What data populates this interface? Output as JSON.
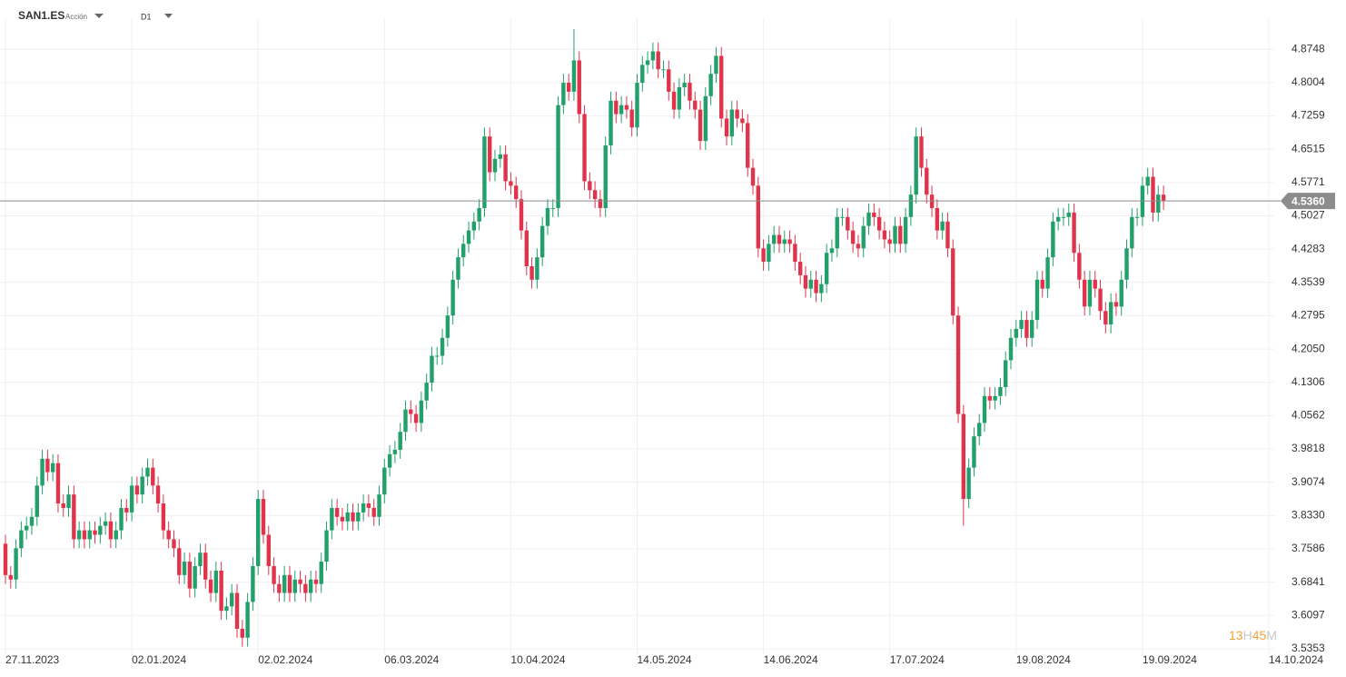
{
  "header": {
    "symbol": "SAN1.ES",
    "asset_type": "Acción",
    "timeframe": "D1"
  },
  "chart_data": {
    "type": "candlestick",
    "categories": [
      "27.11.2023",
      null,
      null,
      null,
      null,
      null,
      null,
      null,
      null,
      null,
      null,
      null,
      null,
      null,
      null,
      null,
      null,
      null,
      null,
      null,
      null,
      null,
      null,
      null,
      "02.01.2024",
      null,
      null,
      null,
      null,
      null,
      null,
      null,
      null,
      null,
      null,
      null,
      null,
      null,
      null,
      null,
      null,
      null,
      null,
      null,
      null,
      null,
      null,
      null,
      "02.02.2024",
      null,
      null,
      null,
      null,
      null,
      null,
      null,
      null,
      null,
      null,
      null,
      null,
      null,
      null,
      null,
      null,
      null,
      null,
      null,
      null,
      null,
      null,
      null,
      "06.03.2024",
      null,
      null,
      null,
      null,
      null,
      null,
      null,
      null,
      null,
      null,
      null,
      null,
      null,
      null,
      null,
      null,
      null,
      null,
      null,
      null,
      null,
      null,
      null,
      "10.04.2024",
      null,
      null,
      null,
      null,
      null,
      null,
      null,
      null,
      null,
      null,
      null,
      null,
      null,
      null,
      null,
      null,
      null,
      null,
      null,
      null,
      null,
      null,
      null,
      "14.05.2024",
      null,
      null,
      null,
      null,
      null,
      null,
      null,
      null,
      null,
      null,
      null,
      null,
      null,
      null,
      null,
      null,
      null,
      null,
      null,
      null,
      null,
      null,
      null,
      "14.06.2024",
      null,
      null,
      null,
      null,
      null,
      null,
      null,
      null,
      null,
      null,
      null,
      null,
      null,
      null,
      null,
      null,
      null,
      null,
      null,
      null,
      null,
      null,
      null,
      "17.07.2024",
      null,
      null,
      null,
      null,
      null,
      null,
      null,
      null,
      null,
      null,
      null,
      null,
      null,
      null,
      null,
      null,
      null,
      null,
      null,
      null,
      null,
      null,
      null,
      "19.08.2024",
      null,
      null,
      null,
      null,
      null,
      null,
      null,
      null,
      null,
      null,
      null,
      null,
      null,
      null,
      null,
      null,
      null,
      null,
      null,
      null,
      null,
      null,
      null,
      "19.09.2024",
      null,
      null,
      null,
      null,
      null,
      null,
      null,
      null,
      null,
      null,
      null,
      null,
      null,
      null,
      null,
      null,
      null,
      null,
      null,
      null,
      null,
      null,
      null,
      "14.10.2024"
    ],
    "open": [
      3.77,
      3.7,
      3.69,
      3.76,
      3.8,
      3.81,
      3.83,
      3.9,
      3.96,
      3.93,
      3.95,
      3.86,
      3.85,
      3.88,
      3.78,
      3.8,
      3.78,
      3.8,
      3.79,
      3.81,
      3.82,
      3.78,
      3.8,
      3.85,
      3.84,
      3.9,
      3.88,
      3.92,
      3.94,
      3.9,
      3.86,
      3.8,
      3.78,
      3.76,
      3.7,
      3.73,
      3.67,
      3.72,
      3.75,
      3.69,
      3.66,
      3.71,
      3.62,
      3.63,
      3.66,
      3.58,
      3.56,
      3.64,
      3.72,
      3.87,
      3.79,
      3.72,
      3.68,
      3.66,
      3.7,
      3.66,
      3.69,
      3.68,
      3.66,
      3.69,
      3.68,
      3.73,
      3.8,
      3.85,
      3.83,
      3.82,
      3.84,
      3.82,
      3.84,
      3.86,
      3.85,
      3.83,
      3.88,
      3.94,
      3.97,
      3.98,
      4.02,
      4.07,
      4.06,
      4.04,
      4.09,
      4.13,
      4.19,
      4.19,
      4.23,
      4.28,
      4.36,
      4.41,
      4.44,
      4.47,
      4.49,
      4.52,
      4.68,
      4.6,
      4.63,
      4.64,
      4.58,
      4.57,
      4.54,
      4.47,
      4.39,
      4.36,
      4.41,
      4.48,
      4.52,
      4.52,
      4.75,
      4.8,
      4.78,
      4.85,
      4.73,
      4.58,
      4.56,
      4.54,
      4.52,
      4.66,
      4.76,
      4.73,
      4.75,
      4.74,
      4.7,
      4.8,
      4.84,
      4.85,
      4.87,
      4.83,
      4.83,
      4.78,
      4.74,
      4.79,
      4.8,
      4.76,
      4.74,
      4.67,
      4.77,
      4.82,
      4.86,
      4.72,
      4.68,
      4.74,
      4.72,
      4.71,
      4.61,
      4.57,
      4.43,
      4.4,
      4.44,
      4.46,
      4.44,
      4.45,
      4.44,
      4.4,
      4.37,
      4.34,
      4.36,
      4.33,
      4.35,
      4.42,
      4.43,
      4.5,
      4.5,
      4.47,
      4.44,
      4.43,
      4.48,
      4.51,
      4.5,
      4.47,
      4.45,
      4.44,
      4.48,
      4.44,
      4.5,
      4.55,
      4.68,
      4.61,
      4.55,
      4.52,
      4.47,
      4.49,
      4.43,
      4.28,
      4.06,
      3.87,
      3.94,
      4.01,
      4.04,
      4.1,
      4.09,
      4.1,
      4.12,
      4.18,
      4.23,
      4.25,
      4.27,
      4.23,
      4.27,
      4.36,
      4.34,
      4.41,
      4.49,
      4.5,
      4.5,
      4.51,
      4.42,
      4.36,
      4.3,
      4.36,
      4.34,
      4.29,
      4.26,
      4.31,
      4.3,
      4.36,
      4.43,
      4.5,
      4.5,
      4.57,
      4.59,
      4.51,
      4.55,
      null,
      null,
      null,
      null,
      null,
      null,
      null,
      null,
      null,
      null,
      null,
      null,
      null,
      null,
      null,
      null,
      null,
      null,
      null,
      null
    ],
    "high": [
      3.79,
      3.72,
      3.78,
      3.82,
      3.83,
      3.85,
      3.92,
      3.98,
      3.98,
      3.97,
      3.97,
      3.88,
      3.9,
      3.9,
      3.82,
      3.82,
      3.82,
      3.82,
      3.83,
      3.84,
      3.84,
      3.82,
      3.87,
      3.87,
      3.92,
      3.92,
      3.94,
      3.96,
      3.96,
      3.92,
      3.88,
      3.82,
      3.8,
      3.78,
      3.75,
      3.75,
      3.74,
      3.77,
      3.77,
      3.71,
      3.73,
      3.73,
      3.65,
      3.68,
      3.68,
      3.6,
      3.66,
      3.74,
      3.89,
      3.89,
      3.81,
      3.74,
      3.7,
      3.72,
      3.72,
      3.71,
      3.71,
      3.7,
      3.71,
      3.71,
      3.75,
      3.82,
      3.87,
      3.87,
      3.85,
      3.86,
      3.86,
      3.86,
      3.88,
      3.88,
      3.87,
      3.9,
      3.96,
      3.99,
      4.0,
      4.04,
      4.09,
      4.09,
      4.08,
      4.11,
      4.15,
      4.21,
      4.21,
      4.25,
      4.3,
      4.38,
      4.43,
      4.46,
      4.49,
      4.51,
      4.54,
      4.7,
      4.7,
      4.65,
      4.66,
      4.66,
      4.6,
      4.59,
      4.56,
      4.49,
      4.41,
      4.43,
      4.5,
      4.54,
      4.54,
      4.77,
      4.82,
      4.82,
      4.92,
      4.87,
      4.75,
      4.6,
      4.58,
      4.56,
      4.68,
      4.78,
      4.78,
      4.77,
      4.77,
      4.76,
      4.82,
      4.86,
      4.87,
      4.89,
      4.89,
      4.85,
      4.85,
      4.8,
      4.81,
      4.82,
      4.82,
      4.78,
      4.76,
      4.79,
      4.84,
      4.88,
      4.88,
      4.74,
      4.76,
      4.76,
      4.74,
      4.73,
      4.63,
      4.59,
      4.45,
      4.46,
      4.48,
      4.48,
      4.47,
      4.47,
      4.46,
      4.42,
      4.39,
      4.38,
      4.38,
      4.37,
      4.44,
      4.45,
      4.52,
      4.52,
      4.52,
      4.49,
      4.46,
      4.5,
      4.53,
      4.53,
      4.52,
      4.49,
      4.47,
      4.5,
      4.5,
      4.52,
      4.57,
      4.7,
      4.7,
      4.63,
      4.57,
      4.54,
      4.51,
      4.51,
      4.45,
      4.3,
      4.08,
      3.96,
      4.03,
      4.06,
      4.12,
      4.12,
      4.12,
      4.14,
      4.2,
      4.25,
      4.27,
      4.29,
      4.29,
      4.29,
      4.38,
      4.38,
      4.43,
      4.51,
      4.52,
      4.52,
      4.53,
      4.53,
      4.44,
      4.38,
      4.38,
      4.38,
      4.36,
      4.31,
      4.33,
      4.33,
      4.38,
      4.45,
      4.52,
      4.52,
      4.59,
      4.61,
      4.61,
      4.57,
      4.57,
      null,
      null,
      null,
      null,
      null,
      null,
      null,
      null,
      null,
      null,
      null,
      null,
      null,
      null,
      null,
      null,
      null,
      null,
      null,
      null
    ],
    "low": [
      3.68,
      3.67,
      3.67,
      3.74,
      3.78,
      3.79,
      3.81,
      3.88,
      3.91,
      3.91,
      3.84,
      3.83,
      3.83,
      3.76,
      3.76,
      3.76,
      3.76,
      3.77,
      3.77,
      3.79,
      3.76,
      3.76,
      3.78,
      3.82,
      3.82,
      3.86,
      3.86,
      3.9,
      3.88,
      3.84,
      3.78,
      3.76,
      3.74,
      3.68,
      3.68,
      3.65,
      3.65,
      3.7,
      3.67,
      3.64,
      3.64,
      3.6,
      3.6,
      3.61,
      3.56,
      3.54,
      3.54,
      3.62,
      3.7,
      3.77,
      3.7,
      3.66,
      3.64,
      3.64,
      3.64,
      3.64,
      3.66,
      3.64,
      3.64,
      3.66,
      3.66,
      3.71,
      3.78,
      3.81,
      3.8,
      3.8,
      3.8,
      3.8,
      3.82,
      3.83,
      3.81,
      3.81,
      3.86,
      3.92,
      3.95,
      3.96,
      4.0,
      4.04,
      4.02,
      4.02,
      4.07,
      4.11,
      4.17,
      4.17,
      4.21,
      4.26,
      4.34,
      4.39,
      4.42,
      4.45,
      4.47,
      4.5,
      4.58,
      4.58,
      4.61,
      4.56,
      4.55,
      4.52,
      4.45,
      4.37,
      4.34,
      4.34,
      4.39,
      4.46,
      4.5,
      4.5,
      4.73,
      4.76,
      4.76,
      4.71,
      4.56,
      4.54,
      4.52,
      4.5,
      4.5,
      4.64,
      4.71,
      4.71,
      4.72,
      4.68,
      4.68,
      4.78,
      4.82,
      4.83,
      4.81,
      4.81,
      4.76,
      4.72,
      4.72,
      4.77,
      4.74,
      4.72,
      4.65,
      4.65,
      4.75,
      4.8,
      4.7,
      4.66,
      4.66,
      4.7,
      4.69,
      4.59,
      4.55,
      4.41,
      4.38,
      4.38,
      4.42,
      4.42,
      4.42,
      4.42,
      4.38,
      4.35,
      4.32,
      4.32,
      4.31,
      4.31,
      4.33,
      4.4,
      4.41,
      4.48,
      4.45,
      4.42,
      4.41,
      4.41,
      4.46,
      4.48,
      4.45,
      4.43,
      4.42,
      4.42,
      4.42,
      4.42,
      4.48,
      4.53,
      4.59,
      4.53,
      4.5,
      4.45,
      4.45,
      4.41,
      4.26,
      4.04,
      3.81,
      3.85,
      3.92,
      3.99,
      4.02,
      4.07,
      4.07,
      4.08,
      4.1,
      4.16,
      4.21,
      4.23,
      4.21,
      4.21,
      4.25,
      4.32,
      4.32,
      4.39,
      4.47,
      4.48,
      4.48,
      4.4,
      4.34,
      4.28,
      4.28,
      4.32,
      4.27,
      4.24,
      4.24,
      4.28,
      4.28,
      4.34,
      4.41,
      4.48,
      4.48,
      4.55,
      4.49,
      4.49,
      4.516,
      null,
      null,
      null,
      null,
      null,
      null,
      null,
      null,
      null,
      null,
      null,
      null,
      null,
      null,
      null,
      null,
      null,
      null,
      null,
      null
    ],
    "close": [
      3.7,
      3.69,
      3.76,
      3.8,
      3.81,
      3.83,
      3.9,
      3.96,
      3.93,
      3.95,
      3.86,
      3.85,
      3.88,
      3.78,
      3.8,
      3.78,
      3.8,
      3.79,
      3.81,
      3.82,
      3.78,
      3.8,
      3.85,
      3.84,
      3.9,
      3.88,
      3.92,
      3.94,
      3.9,
      3.86,
      3.8,
      3.78,
      3.76,
      3.7,
      3.73,
      3.67,
      3.72,
      3.75,
      3.69,
      3.66,
      3.71,
      3.62,
      3.63,
      3.66,
      3.58,
      3.56,
      3.64,
      3.72,
      3.87,
      3.79,
      3.72,
      3.68,
      3.66,
      3.7,
      3.66,
      3.69,
      3.68,
      3.66,
      3.69,
      3.68,
      3.73,
      3.8,
      3.85,
      3.83,
      3.82,
      3.84,
      3.82,
      3.84,
      3.86,
      3.85,
      3.83,
      3.88,
      3.94,
      3.97,
      3.98,
      4.02,
      4.07,
      4.06,
      4.04,
      4.09,
      4.13,
      4.19,
      4.19,
      4.23,
      4.28,
      4.36,
      4.41,
      4.44,
      4.47,
      4.49,
      4.52,
      4.68,
      4.6,
      4.63,
      4.64,
      4.58,
      4.57,
      4.54,
      4.47,
      4.39,
      4.36,
      4.41,
      4.48,
      4.52,
      4.52,
      4.75,
      4.8,
      4.78,
      4.85,
      4.73,
      4.58,
      4.56,
      4.54,
      4.52,
      4.66,
      4.76,
      4.73,
      4.75,
      4.74,
      4.7,
      4.8,
      4.84,
      4.85,
      4.87,
      4.83,
      4.83,
      4.78,
      4.74,
      4.79,
      4.8,
      4.76,
      4.74,
      4.67,
      4.77,
      4.82,
      4.86,
      4.72,
      4.68,
      4.74,
      4.72,
      4.71,
      4.61,
      4.57,
      4.43,
      4.4,
      4.44,
      4.46,
      4.44,
      4.45,
      4.44,
      4.4,
      4.37,
      4.34,
      4.36,
      4.33,
      4.35,
      4.42,
      4.43,
      4.5,
      4.5,
      4.47,
      4.44,
      4.43,
      4.48,
      4.51,
      4.5,
      4.47,
      4.45,
      4.44,
      4.48,
      4.44,
      4.5,
      4.55,
      4.68,
      4.61,
      4.55,
      4.52,
      4.47,
      4.49,
      4.43,
      4.28,
      4.06,
      3.87,
      3.94,
      4.01,
      4.04,
      4.1,
      4.09,
      4.1,
      4.12,
      4.18,
      4.23,
      4.25,
      4.27,
      4.23,
      4.27,
      4.36,
      4.34,
      4.41,
      4.49,
      4.5,
      4.5,
      4.51,
      4.42,
      4.36,
      4.3,
      4.36,
      4.34,
      4.29,
      4.26,
      4.31,
      4.3,
      4.36,
      4.43,
      4.5,
      4.5,
      4.57,
      4.59,
      4.51,
      4.55,
      4.536,
      null,
      null,
      null,
      null,
      null,
      null,
      null,
      null,
      null,
      null,
      null,
      null,
      null,
      null,
      null,
      null,
      null,
      null,
      null,
      null
    ],
    "up_color": "#21a06b",
    "down_color": "#e0344c",
    "ylim": [
      3.523,
      4.924
    ],
    "yticks": [
      4.8748,
      4.8004,
      4.7259,
      4.6515,
      4.5771,
      4.5027,
      4.4283,
      4.3539,
      4.2795,
      {
        "value": 4.205,
        "label": "4.2050"
      },
      4.1306,
      4.0562,
      3.9818,
      3.9074,
      {
        "value": 3.833,
        "label": "3.8330"
      },
      3.7586,
      3.6841,
      3.6097,
      3.5353
    ],
    "grid": true,
    "last_price": {
      "value": 4.536,
      "label": "4.5360"
    },
    "countdown": [
      "13",
      "H",
      "45",
      "M"
    ]
  }
}
